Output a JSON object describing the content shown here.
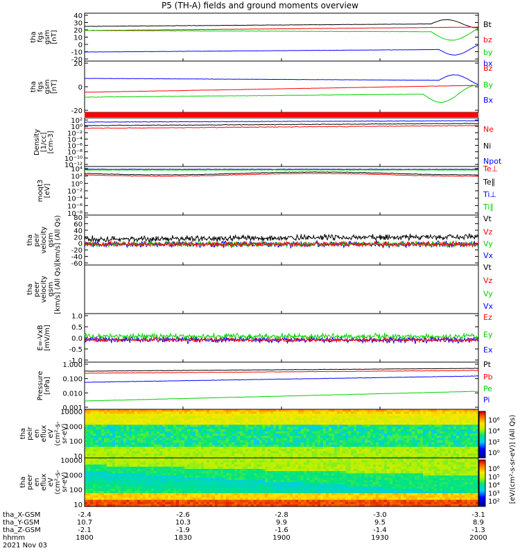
{
  "title": "P5 (TH-A) fields and ground moments overview",
  "colors": {
    "black": "#000000",
    "red": "#ff0000",
    "green": "#00d000",
    "blue": "#0000ff"
  },
  "chart_data": [
    {
      "type": "line",
      "ylabel": [
        "tha",
        "fgs",
        "gsm",
        "[nT]"
      ],
      "yticks": [
        "40",
        "30",
        "20",
        "10",
        "0",
        "-10",
        "-20"
      ],
      "series": [
        {
          "name": "Bt",
          "color": "black"
        },
        {
          "name": "bz",
          "color": "red"
        },
        {
          "name": "by",
          "color": "green"
        },
        {
          "name": "bx",
          "color": "blue"
        }
      ]
    },
    {
      "type": "line",
      "ylabel": [
        "tha",
        "fgs",
        "gsm",
        "[nT]"
      ],
      "yticks": [
        "20",
        "0",
        "-20"
      ],
      "series": [
        {
          "name": "Bz",
          "color": "red"
        },
        {
          "name": "By",
          "color": "green"
        },
        {
          "name": "Bx",
          "color": "blue"
        }
      ]
    },
    {
      "type": "line",
      "ylabel": [
        "Density",
        "[1/cc]",
        "[cm-3]"
      ],
      "yticks": [
        "10²",
        "10⁰",
        "10⁻²",
        "10⁻⁴",
        "10⁻⁶",
        "10⁻⁸",
        "10⁻¹⁰",
        "10⁻¹²"
      ],
      "series": [
        {
          "name": "Ne",
          "color": "red"
        },
        {
          "name": "Ni",
          "color": "black"
        },
        {
          "name": "Npot",
          "color": "blue"
        }
      ]
    },
    {
      "type": "line",
      "ylabel": [
        "moqt3",
        "[eV]"
      ],
      "yticks": [
        "10⁴",
        "10²",
        "10⁰",
        "10⁻²",
        "10⁻⁴",
        "10⁻⁶",
        "10⁻⁸"
      ],
      "series": [
        {
          "name": "Te⊥",
          "color": "red"
        },
        {
          "name": "Te∥",
          "color": "black"
        },
        {
          "name": "Ti⊥",
          "color": "blue"
        },
        {
          "name": "Ti∥",
          "color": "green"
        }
      ]
    },
    {
      "type": "line",
      "ylabel": [
        "tha",
        "peir",
        "velocity",
        "gsm",
        "[km/s] (All Qs)"
      ],
      "yticks": [
        "80",
        "60",
        "40",
        "20",
        "0",
        "-20",
        "-40",
        "-60"
      ],
      "series": [
        {
          "name": "Vt",
          "color": "black"
        },
        {
          "name": "Vz",
          "color": "red"
        },
        {
          "name": "Vy",
          "color": "green"
        },
        {
          "name": "Vx",
          "color": "blue"
        }
      ]
    },
    {
      "type": "line",
      "ylabel": [
        "tha",
        "peer",
        "velocity",
        "gsm",
        "[km/s] (All Qs)"
      ],
      "yticks": [],
      "series": [
        {
          "name": "Vt",
          "color": "black"
        },
        {
          "name": "Vz",
          "color": "red"
        },
        {
          "name": "Vy",
          "color": "green"
        },
        {
          "name": "Vx",
          "color": "blue"
        }
      ]
    },
    {
      "type": "line",
      "ylabel": [
        "E=-VxB",
        "[mV/m]"
      ],
      "yticks": [
        "1.0",
        "0.5",
        "0.0",
        "-0.5",
        "-1.0"
      ],
      "series": [
        {
          "name": "Ez",
          "color": "red"
        },
        {
          "name": "Ey",
          "color": "green"
        },
        {
          "name": "Ex",
          "color": "blue"
        }
      ]
    },
    {
      "type": "line",
      "ylabel": [
        "Pressure",
        "[nPa]"
      ],
      "yticks": [
        "1.000",
        "0.100",
        "0.010",
        "0.001"
      ],
      "series": [
        {
          "name": "Pt",
          "color": "black"
        },
        {
          "name": "Pb",
          "color": "red"
        },
        {
          "name": "Pe",
          "color": "green"
        },
        {
          "name": "Pi",
          "color": "blue"
        }
      ]
    },
    {
      "type": "heatmap",
      "ylabel": [
        "tha",
        "peir",
        "en",
        "eflux",
        "eV",
        "(cm²-s-",
        "sr-eV)"
      ],
      "yticks": [
        "10000",
        "1000",
        "100",
        "10"
      ]
    },
    {
      "type": "heatmap",
      "ylabel": [
        "tha",
        "peer",
        "en",
        "eflux",
        "eV",
        "(cm²-s-",
        "sr-eV)"
      ],
      "yticks": [
        "10000",
        "1000",
        "100",
        "10"
      ]
    }
  ],
  "colorbar": {
    "ticks": [
      "10⁶",
      "10⁴",
      "10²",
      "10⁰"
    ],
    "ticks_lower": [
      "10⁶",
      "10⁵",
      "10⁴",
      "10³",
      "10²"
    ],
    "label": "[eV/(cm²-s-sr-eV)] (All Qs)"
  },
  "xaxis": {
    "rows": [
      {
        "label": "tha_X-GSM",
        "values": [
          "-2.4",
          "-2.6",
          "-2.8",
          "-3.0",
          "-3.1"
        ]
      },
      {
        "label": "tha_Y-GSM",
        "values": [
          "10.7",
          "10.3",
          "9.9",
          "9.5",
          "8.9"
        ]
      },
      {
        "label": "tha_Z-GSM",
        "values": [
          "-2.1",
          "-1.9",
          "-1.6",
          "-1.4",
          "-1.3"
        ]
      },
      {
        "label": "hhmm",
        "values": [
          "1800",
          "1830",
          "1900",
          "1930",
          "2000"
        ]
      }
    ],
    "date": "2021 Nov 03"
  }
}
